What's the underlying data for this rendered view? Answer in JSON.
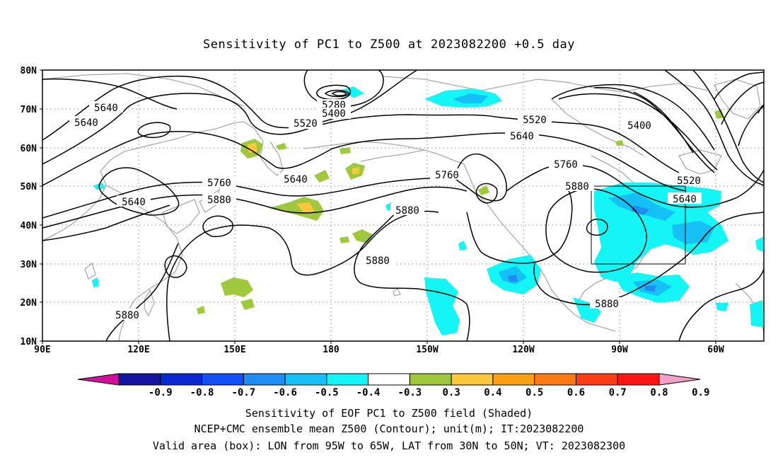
{
  "title": "Sensitivity of PC1 to Z500 at 2023082200 +0.5 day",
  "lat_labels": [
    "80N",
    "70N",
    "60N",
    "50N",
    "40N",
    "30N",
    "20N",
    "10N"
  ],
  "lon_labels": [
    "90E",
    "120E",
    "150E",
    "180",
    "150W",
    "120W",
    "90W",
    "60W"
  ],
  "contour_labels": [
    "5640",
    "5640",
    "5640",
    "5280",
    "5400",
    "5520",
    "5520",
    "5640",
    "5400",
    "5640",
    "5760",
    "5760",
    "5760",
    "5880",
    "5880",
    "5880",
    "5880",
    "5880",
    "5880",
    "5520",
    "5640",
    "5880"
  ],
  "colorbar": {
    "labels": [
      "-0.9",
      "-0.8",
      "-0.7",
      "-0.6",
      "-0.5",
      "-0.4",
      "-0.3",
      "0.3",
      "0.4",
      "0.5",
      "0.6",
      "0.7",
      "0.8",
      "0.9"
    ],
    "colors": [
      "#d0109a",
      "#1414a0",
      "#0a28d2",
      "#1450f5",
      "#1e8cf0",
      "#14c0f5",
      "#14f5f5",
      "#ffffff",
      "#a0c83c",
      "#ffc83c",
      "#ffa014",
      "#ff7814",
      "#ff3c14",
      "#ff1414",
      "#f5a0c8"
    ]
  },
  "captions": {
    "line1": "Sensitivity of EOF PC1 to Z500 field (Shaded)",
    "line2": "NCEP+CMC ensemble mean Z500 (Contour); unit(m); IT:2023082200",
    "line3": "Valid area (box): LON from 95W to 65W, LAT from 30N to 50N; VT: 2023082300"
  }
}
